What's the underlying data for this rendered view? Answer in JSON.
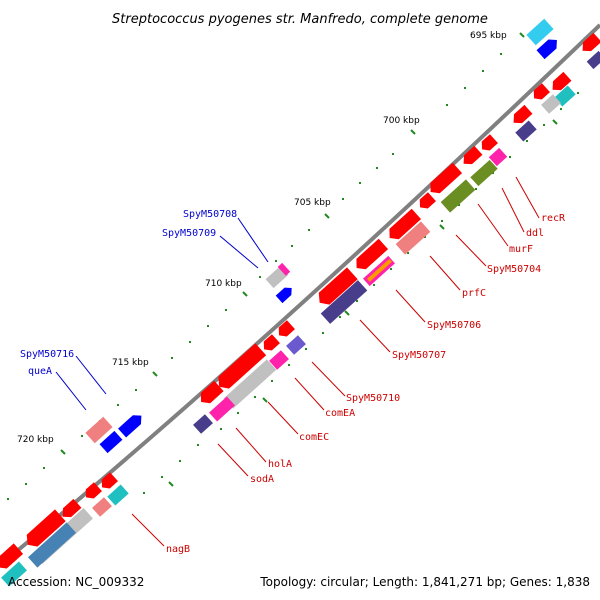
{
  "title": "Streptococcus pyogenes str. Manfredo, complete genome",
  "footer": {
    "accession": "Accession: NC_009332",
    "summary": "Topology: circular; Length: 1,841,271 bp; Genes: 1,838"
  },
  "ticks": [
    "695 kbp",
    "700 kbp",
    "705 kbp",
    "710 kbp",
    "715 kbp",
    "720 kbp"
  ],
  "colors": {
    "backbone": "#808080",
    "gene_red": "#ff0000",
    "forward_label": "#0000cc",
    "reverse_label": "#cc0000",
    "tick": "#228822"
  },
  "forward_labels": [
    "SpyM50708",
    "SpyM50709",
    "SpyM50716",
    "queA"
  ],
  "reverse_labels": [
    "recR",
    "ddl",
    "murF",
    "SpyM50704",
    "prfC",
    "SpyM50706",
    "SpyM50707",
    "SpyM50710",
    "comEA",
    "comEC",
    "holA",
    "sodA",
    "nagB"
  ]
}
